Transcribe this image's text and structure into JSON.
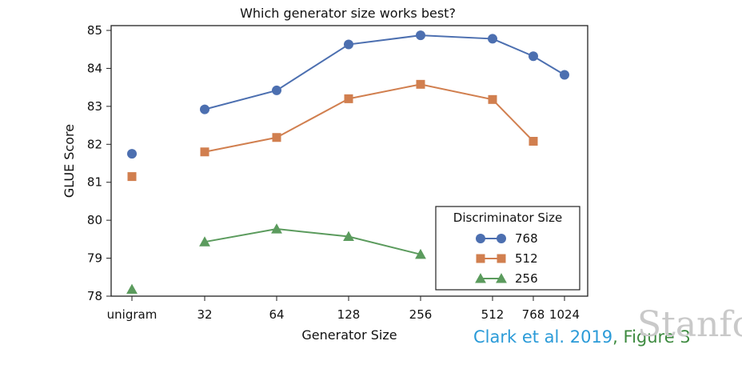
{
  "chart_data": {
    "type": "line",
    "title": "Which generator size works best?",
    "xlabel": "Generator Size",
    "ylabel": "GLUE Score",
    "categories": [
      "unigram",
      "32",
      "64",
      "128",
      "256",
      "512",
      "768",
      "1024"
    ],
    "ylim": [
      78,
      85.2
    ],
    "yticks": [
      78,
      79,
      80,
      81,
      82,
      83,
      84,
      85
    ],
    "grid": false,
    "legend": {
      "title": "Discriminator Size",
      "placement": "lower-right"
    },
    "series": [
      {
        "name": "768",
        "color": "#4c6fb0",
        "marker": "circle",
        "values": [
          81.75,
          82.92,
          83.42,
          84.63,
          84.87,
          84.78,
          84.32,
          83.83
        ],
        "connected_from": 1
      },
      {
        "name": "512",
        "color": "#d17f4f",
        "marker": "square",
        "values": [
          81.15,
          81.8,
          82.18,
          83.2,
          83.58,
          83.18,
          82.08,
          null
        ],
        "connected_from": 1
      },
      {
        "name": "256",
        "color": "#5b9b5d",
        "marker": "triangle",
        "values": [
          78.18,
          79.43,
          79.77,
          79.57,
          79.1,
          null,
          null,
          null
        ],
        "connected_from": 1
      }
    ]
  },
  "citation": {
    "authors": "Clark et al. 2019",
    "separator": ",",
    "figure": " Figure 3",
    "authors_color": "#2b9bd8",
    "figure_color": "#3d8a3f"
  },
  "watermark": "Stanford"
}
